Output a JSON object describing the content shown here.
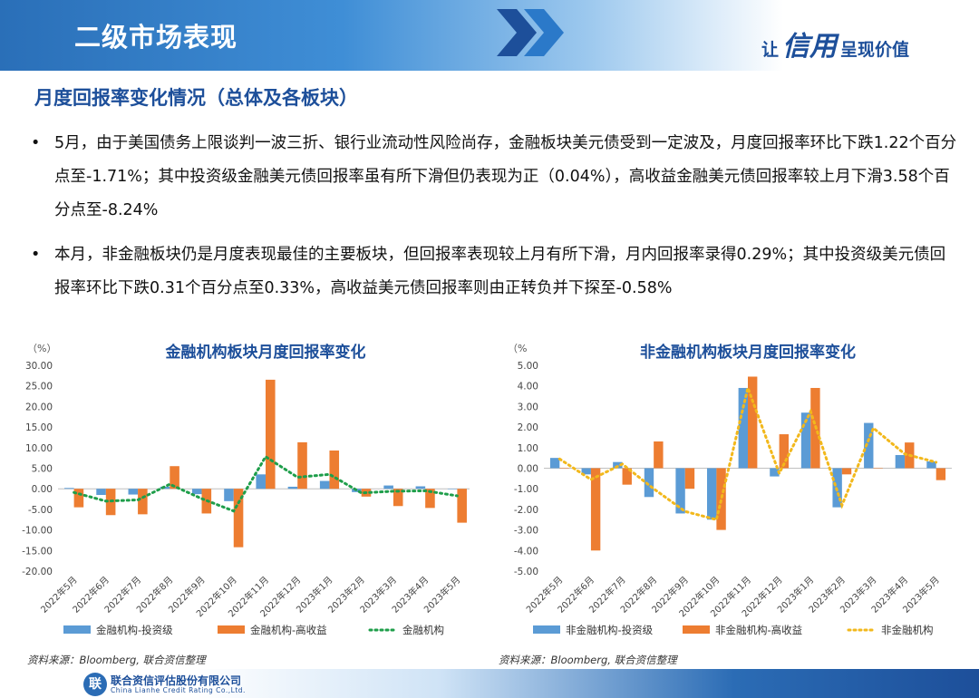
{
  "header": {
    "title": "二级市场表现",
    "slogan_pre": "让",
    "slogan_big": "信用",
    "slogan_post": "呈现价值"
  },
  "section_title": "月度回报率变化情况（总体及各板块）",
  "bullets": [
    "5月，由于美国债务上限谈判一波三折、银行业流动性风险尚存，金融板块美元债受到一定波及，月度回报率环比下跌1.22个百分点至-1.71%；其中投资级金融美元债回报率虽有所下滑但仍表现为正（0.04%），高收益金融美元债回报率较上月下滑3.58个百分点至-8.24%",
    "本月，非金融板块仍是月度表现最佳的主要板块，但回报率表现较上月有所下滑，月内回报率录得0.29%；其中投资级美元债回报率环比下跌0.31个百分点至0.33%，高收益美元债回报率则由正转负并下探至-0.58%"
  ],
  "colors": {
    "ig": "#5b9bd5",
    "hy": "#ed7d31",
    "fin_line": "#1e9e4a",
    "nonfin_line": "#f2b81c",
    "title": "#1d4f9a"
  },
  "chart_data": [
    {
      "type": "bar",
      "title": "金融机构板块月度回报率变化",
      "unit_label": "（%）",
      "categories": [
        "2022年5月",
        "2022年6月",
        "2022年7月",
        "2022年8月",
        "2022年9月",
        "2022年10月",
        "2022年11月",
        "2022年12月",
        "2023年1月",
        "2023年2月",
        "2023年3月",
        "2023年4月",
        "2023年5月"
      ],
      "ylim": [
        -20,
        30
      ],
      "yticks": [
        "30.00",
        "25.00",
        "20.00",
        "15.00",
        "10.00",
        "5.00",
        "0.00",
        "-5.00",
        "-10.00",
        "-15.00",
        "-20.00"
      ],
      "series": [
        {
          "name": "金融机构-投资级",
          "kind": "bar",
          "values": [
            0.2,
            -1.5,
            -1.4,
            0.5,
            -1.3,
            -3.0,
            3.5,
            0.5,
            1.9,
            -0.8,
            0.8,
            0.6,
            0.04
          ]
        },
        {
          "name": "金融机构-高收益",
          "kind": "bar",
          "values": [
            -4.5,
            -6.4,
            -6.2,
            5.5,
            -6.0,
            -14.2,
            26.5,
            11.3,
            9.3,
            -1.9,
            -4.2,
            -4.66,
            -8.24
          ]
        },
        {
          "name": "金融机构",
          "kind": "line",
          "values": [
            -0.9,
            -3.0,
            -2.7,
            1.1,
            -2.4,
            -5.4,
            7.8,
            2.8,
            3.5,
            -1.0,
            -0.6,
            -0.49,
            -1.71
          ]
        }
      ]
    },
    {
      "type": "bar",
      "title": "非金融机构板块月度回报率变化",
      "unit_label": "（%",
      "categories": [
        "2022年5月",
        "2022年6月",
        "2022年7月",
        "2022年8月",
        "2022年9月",
        "2022年10月",
        "2022年11月",
        "2022年12月",
        "2023年1月",
        "2023年2月",
        "2023年3月",
        "2023年4月",
        "2023年5月"
      ],
      "ylim": [
        -5,
        5
      ],
      "yticks": [
        "5.00",
        "4.00",
        "3.00",
        "2.00",
        "1.00",
        "0.00",
        "-1.00",
        "-2.00",
        "-3.00",
        "-4.00",
        "-5.00"
      ],
      "series": [
        {
          "name": "非金融机构-投资级",
          "kind": "bar",
          "values": [
            0.5,
            -0.3,
            0.3,
            -1.4,
            -2.2,
            -2.5,
            3.9,
            -0.4,
            2.7,
            -1.9,
            2.2,
            0.64,
            0.33
          ]
        },
        {
          "name": "非金融机构-高收益",
          "kind": "bar",
          "values": [
            0.0,
            -4.0,
            -0.8,
            1.3,
            -1.0,
            -3.0,
            4.45,
            1.65,
            3.9,
            -0.3,
            0.0,
            1.25,
            -0.58
          ]
        },
        {
          "name": "非金融机构",
          "kind": "line",
          "values": [
            0.45,
            -0.55,
            0.2,
            -1.0,
            -2.1,
            -2.5,
            3.9,
            -0.25,
            2.75,
            -1.8,
            1.95,
            0.69,
            0.29
          ]
        }
      ]
    }
  ],
  "sources": [
    "资料来源：Bloomberg, 联合资信整理",
    "资料来源：Bloomberg, 联合资信整理"
  ],
  "footer": {
    "logo": "联",
    "name_cn": "联合资信评估股份有限公司",
    "name_en": "China Lianhe Credit Rating Co.,Ltd."
  }
}
